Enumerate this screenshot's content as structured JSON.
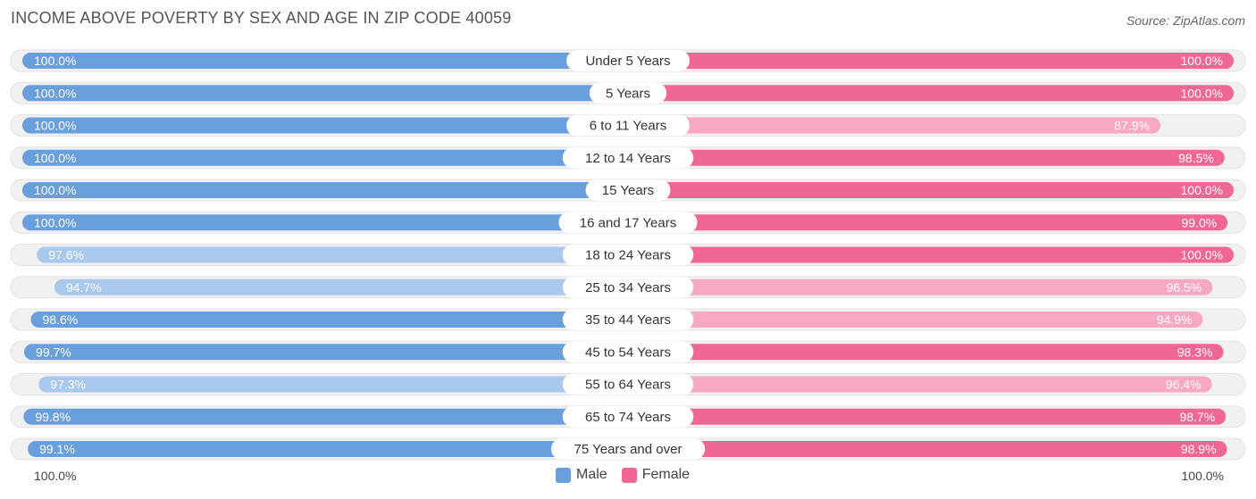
{
  "title": "INCOME ABOVE POVERTY BY SEX AND AGE IN ZIP CODE 40059",
  "source": "Source: ZipAtlas.com",
  "chart_data": {
    "type": "bar",
    "orientation": "horizontal-diverging",
    "categories": [
      "Under 5 Years",
      "5 Years",
      "6 to 11 Years",
      "12 to 14 Years",
      "15 Years",
      "16 and 17 Years",
      "18 to 24 Years",
      "25 to 34 Years",
      "35 to 44 Years",
      "45 to 54 Years",
      "55 to 64 Years",
      "65 to 74 Years",
      "75 Years and over"
    ],
    "series": [
      {
        "name": "Male",
        "values": [
          100.0,
          100.0,
          100.0,
          100.0,
          100.0,
          100.0,
          97.6,
          94.7,
          98.6,
          99.7,
          97.3,
          99.8,
          99.1
        ],
        "labels": [
          "100.0%",
          "100.0%",
          "100.0%",
          "100.0%",
          "100.0%",
          "100.0%",
          "97.6%",
          "94.7%",
          "98.6%",
          "99.7%",
          "97.3%",
          "99.8%",
          "99.1%"
        ]
      },
      {
        "name": "Female",
        "values": [
          100.0,
          100.0,
          87.9,
          98.5,
          100.0,
          99.0,
          100.0,
          96.5,
          94.9,
          98.3,
          96.4,
          98.7,
          98.9
        ],
        "labels": [
          "100.0%",
          "100.0%",
          "87.9%",
          "98.5%",
          "100.0%",
          "99.0%",
          "100.0%",
          "96.5%",
          "94.9%",
          "98.3%",
          "96.4%",
          "98.7%",
          "98.9%"
        ]
      }
    ],
    "xlim": [
      0,
      100
    ],
    "axis_left_label": "100.0%",
    "axis_right_label": "100.0%",
    "legend_position": "bottom-center"
  },
  "colors": {
    "male_strong": "#6a9fdd",
    "male_light": "#a9c8ee",
    "female_strong": "#f06794",
    "female_light": "#f7a8c2",
    "track": "#f1f1f1"
  }
}
